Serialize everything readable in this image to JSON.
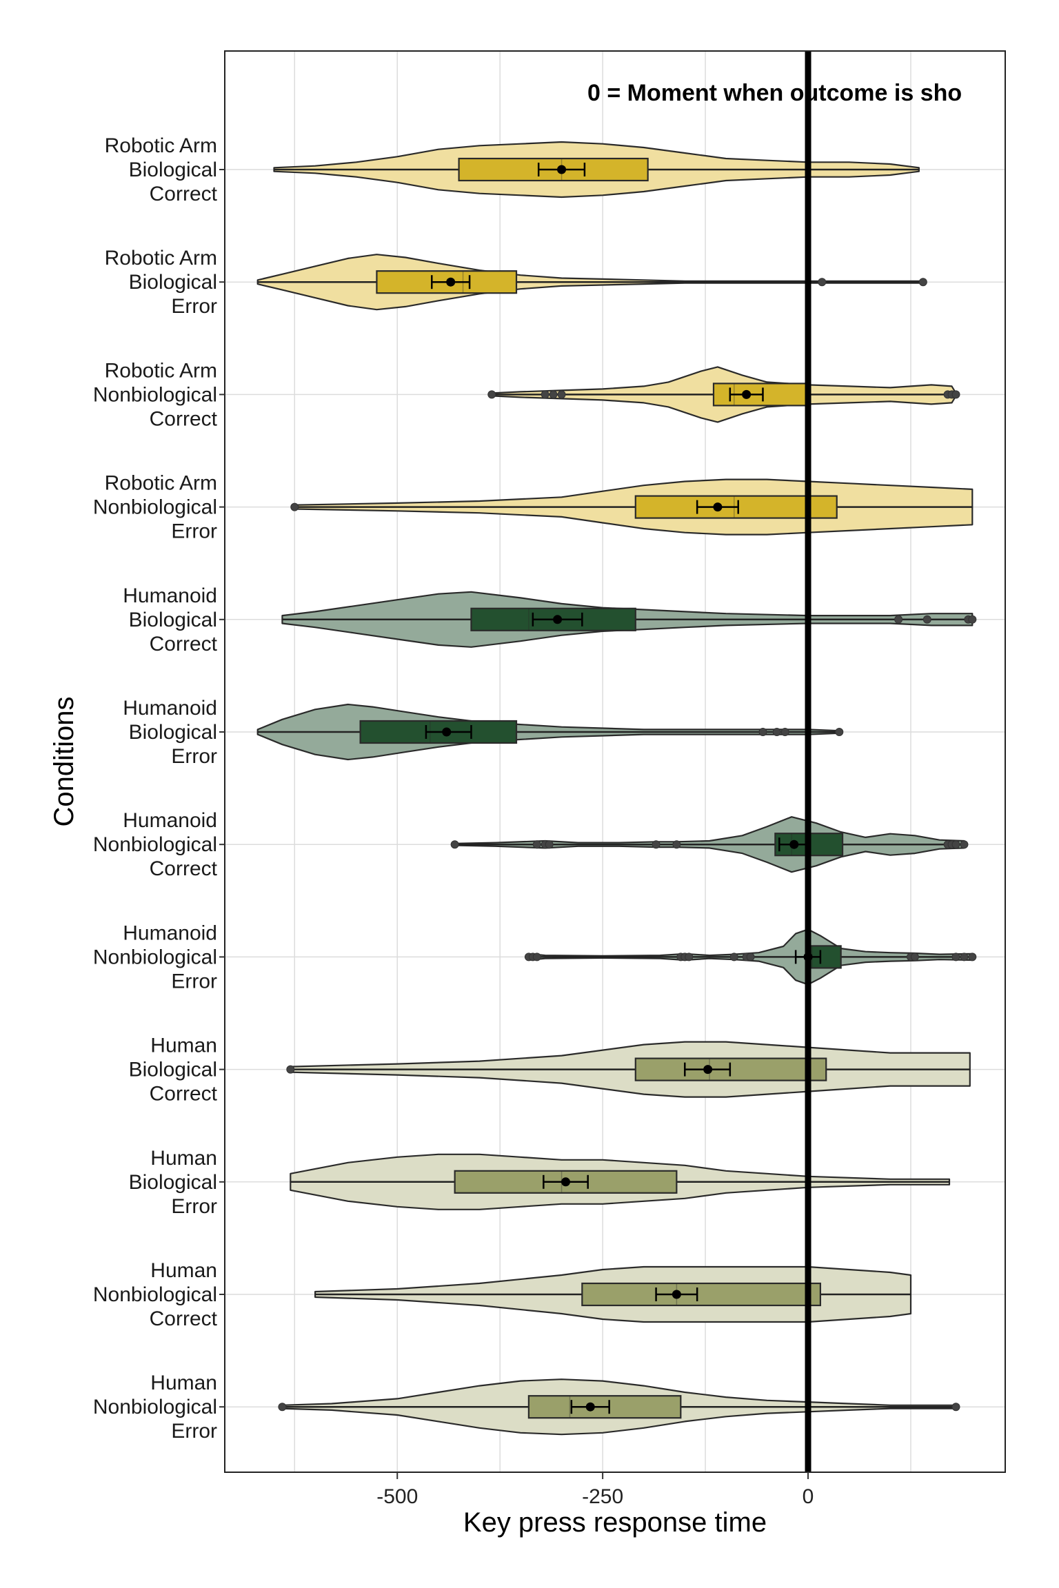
{
  "chart_data": {
    "type": "violin",
    "orientation": "horizontal",
    "xlabel": "Key press response time",
    "ylabel": "Conditions",
    "annotation": "0 = Moment when outcome is sho",
    "xlim": [
      -710,
      240
    ],
    "xticks": [
      -500,
      -250,
      0
    ],
    "xtick_labels": [
      "-500",
      "-250",
      "0"
    ],
    "grid": true,
    "reference_line": 0,
    "colors": {
      "Robotic Arm": {
        "box": "#D4B42A",
        "violin": "#F0DFA0"
      },
      "Humanoid": {
        "box": "#23502F",
        "violin": "#94AA9A"
      },
      "Human": {
        "box": "#9AA06A",
        "violin": "#DCDDC6"
      }
    },
    "conditions": [
      {
        "label": [
          "Robotic Arm",
          "Biological",
          "Correct"
        ],
        "agent": "Robotic Arm",
        "q1": -425,
        "median": -300,
        "q3": -195,
        "mean": -300,
        "ci": [
          -328,
          -272
        ],
        "min": -650,
        "max": 135,
        "outliers": [],
        "violin": [
          [
            -650,
            1
          ],
          [
            -600,
            2
          ],
          [
            -550,
            4
          ],
          [
            -500,
            7
          ],
          [
            -450,
            11
          ],
          [
            -400,
            13
          ],
          [
            -350,
            14
          ],
          [
            -300,
            15
          ],
          [
            -250,
            14
          ],
          [
            -200,
            12
          ],
          [
            -150,
            9
          ],
          [
            -100,
            6
          ],
          [
            -50,
            5
          ],
          [
            0,
            4
          ],
          [
            50,
            4
          ],
          [
            100,
            3
          ],
          [
            135,
            1
          ]
        ]
      },
      {
        "label": [
          "Robotic Arm",
          "Biological",
          "Error"
        ],
        "agent": "Robotic Arm",
        "q1": -525,
        "median": -420,
        "q3": -355,
        "mean": -435,
        "ci": [
          -458,
          -412
        ],
        "min": -670,
        "max": 140,
        "outliers": [
          17,
          140
        ],
        "violin": [
          [
            -670,
            2
          ],
          [
            -640,
            8
          ],
          [
            -600,
            16
          ],
          [
            -560,
            24
          ],
          [
            -525,
            28
          ],
          [
            -490,
            25
          ],
          [
            -450,
            19
          ],
          [
            -400,
            12
          ],
          [
            -350,
            7
          ],
          [
            -300,
            4
          ],
          [
            -250,
            3
          ],
          [
            -200,
            2
          ],
          [
            -150,
            1
          ],
          [
            -100,
            1
          ],
          [
            0,
            1
          ],
          [
            140,
            1
          ]
        ]
      },
      {
        "label": [
          "Robotic Arm",
          "Nonbiological",
          "Correct"
        ],
        "agent": "Robotic Arm",
        "q1": -115,
        "median": -90,
        "q3": 0,
        "mean": -75,
        "ci": [
          -95,
          -55
        ],
        "min": -385,
        "max": 180,
        "outliers": [
          -385,
          -320,
          -310,
          -300,
          170,
          175,
          180
        ],
        "violin": [
          [
            -385,
            1
          ],
          [
            -350,
            2
          ],
          [
            -300,
            3
          ],
          [
            -250,
            4
          ],
          [
            -200,
            6
          ],
          [
            -170,
            9
          ],
          [
            -130,
            17
          ],
          [
            -110,
            20
          ],
          [
            -80,
            14
          ],
          [
            -50,
            9
          ],
          [
            0,
            7
          ],
          [
            50,
            6
          ],
          [
            100,
            5
          ],
          [
            150,
            7
          ],
          [
            175,
            6
          ],
          [
            180,
            1
          ]
        ]
      },
      {
        "label": [
          "Robotic Arm",
          "Nonbiological",
          "Error"
        ],
        "agent": "Robotic Arm",
        "q1": -210,
        "median": -90,
        "q3": 35,
        "mean": -110,
        "ci": [
          -135,
          -85
        ],
        "min": -625,
        "max": 200,
        "outliers": [
          -625
        ],
        "violin": [
          [
            -625,
            1
          ],
          [
            -500,
            2
          ],
          [
            -400,
            3
          ],
          [
            -300,
            5
          ],
          [
            -250,
            8
          ],
          [
            -200,
            11
          ],
          [
            -150,
            13
          ],
          [
            -100,
            14
          ],
          [
            -50,
            14
          ],
          [
            0,
            13
          ],
          [
            50,
            12
          ],
          [
            100,
            11
          ],
          [
            150,
            10
          ],
          [
            200,
            9
          ]
        ]
      },
      {
        "label": [
          "Humanoid",
          "Biological",
          "Correct"
        ],
        "agent": "Humanoid",
        "q1": -410,
        "median": -340,
        "q3": -210,
        "mean": -305,
        "ci": [
          -335,
          -275
        ],
        "min": -640,
        "max": 200,
        "outliers": [
          110,
          145,
          195,
          200
        ],
        "violin": [
          [
            -640,
            2
          ],
          [
            -600,
            4
          ],
          [
            -550,
            7
          ],
          [
            -500,
            10
          ],
          [
            -450,
            13
          ],
          [
            -410,
            14
          ],
          [
            -350,
            11
          ],
          [
            -300,
            8
          ],
          [
            -250,
            6
          ],
          [
            -200,
            5
          ],
          [
            -150,
            4
          ],
          [
            -100,
            3
          ],
          [
            0,
            2
          ],
          [
            100,
            2
          ],
          [
            150,
            3
          ],
          [
            200,
            3
          ]
        ]
      },
      {
        "label": [
          "Humanoid",
          "Biological",
          "Error"
        ],
        "agent": "Humanoid",
        "q1": -545,
        "median": -460,
        "q3": -355,
        "mean": -440,
        "ci": [
          -465,
          -410
        ],
        "min": -670,
        "max": 38,
        "outliers": [
          -55,
          -38,
          -28,
          38
        ],
        "violin": [
          [
            -670,
            2
          ],
          [
            -640,
            10
          ],
          [
            -600,
            18
          ],
          [
            -560,
            22
          ],
          [
            -530,
            20
          ],
          [
            -490,
            16
          ],
          [
            -450,
            12
          ],
          [
            -400,
            8
          ],
          [
            -350,
            6
          ],
          [
            -300,
            4
          ],
          [
            -250,
            3
          ],
          [
            -200,
            2
          ],
          [
            -150,
            2
          ],
          [
            -100,
            2
          ],
          [
            -50,
            2
          ],
          [
            0,
            2
          ],
          [
            38,
            1
          ]
        ]
      },
      {
        "label": [
          "Humanoid",
          "Nonbiological",
          "Correct"
        ],
        "agent": "Humanoid",
        "q1": -40,
        "median": -20,
        "q3": 42,
        "mean": -17,
        "ci": [
          -35,
          0
        ],
        "min": -430,
        "max": 190,
        "outliers": [
          -430,
          -330,
          -320,
          -315,
          -185,
          -160,
          170,
          175,
          180,
          190
        ],
        "violin": [
          [
            -430,
            1
          ],
          [
            -380,
            2
          ],
          [
            -320,
            4
          ],
          [
            -280,
            2
          ],
          [
            -230,
            2
          ],
          [
            -185,
            3
          ],
          [
            -160,
            3
          ],
          [
            -120,
            4
          ],
          [
            -80,
            10
          ],
          [
            -50,
            20
          ],
          [
            -20,
            31
          ],
          [
            10,
            24
          ],
          [
            40,
            14
          ],
          [
            70,
            8
          ],
          [
            100,
            12
          ],
          [
            130,
            10
          ],
          [
            160,
            5
          ],
          [
            190,
            4
          ]
        ]
      },
      {
        "label": [
          "Humanoid",
          "Nonbiological",
          "Error"
        ],
        "agent": "Humanoid",
        "q1": 3,
        "median": 5,
        "q3": 40,
        "mean": 0,
        "ci": [
          -15,
          15
        ],
        "min": -340,
        "max": 200,
        "outliers": [
          -340,
          -335,
          -330,
          -155,
          -150,
          -145,
          -90,
          -75,
          -70,
          125,
          130,
          180,
          190,
          200
        ],
        "violin": [
          [
            -340,
            6
          ],
          [
            -320,
            3
          ],
          [
            -250,
            2
          ],
          [
            -180,
            3
          ],
          [
            -150,
            6
          ],
          [
            -120,
            3
          ],
          [
            -90,
            5
          ],
          [
            -60,
            8
          ],
          [
            -30,
            20
          ],
          [
            -15,
            44
          ],
          [
            0,
            52
          ],
          [
            15,
            40
          ],
          [
            40,
            16
          ],
          [
            70,
            10
          ],
          [
            100,
            8
          ],
          [
            130,
            7
          ],
          [
            160,
            5
          ],
          [
            200,
            6
          ]
        ]
      },
      {
        "label": [
          "Human",
          "Biological",
          "Correct"
        ],
        "agent": "Human",
        "q1": -210,
        "median": -120,
        "q3": 22,
        "mean": -122,
        "ci": [
          -150,
          -95
        ],
        "min": -630,
        "max": 197,
        "outliers": [
          -630
        ],
        "violin": [
          [
            -630,
            1
          ],
          [
            -500,
            2
          ],
          [
            -400,
            3
          ],
          [
            -300,
            5
          ],
          [
            -250,
            7
          ],
          [
            -200,
            9
          ],
          [
            -150,
            10
          ],
          [
            -100,
            10
          ],
          [
            -50,
            9
          ],
          [
            0,
            8
          ],
          [
            50,
            7
          ],
          [
            100,
            6
          ],
          [
            150,
            6
          ],
          [
            197,
            6
          ]
        ]
      },
      {
        "label": [
          "Human",
          "Biological",
          "Error"
        ],
        "agent": "Human",
        "q1": -430,
        "median": -300,
        "q3": -160,
        "mean": -295,
        "ci": [
          -322,
          -268
        ],
        "min": -630,
        "max": 172,
        "outliers": [],
        "violin": [
          [
            -630,
            3
          ],
          [
            -560,
            7
          ],
          [
            -500,
            9
          ],
          [
            -450,
            10
          ],
          [
            -400,
            10
          ],
          [
            -350,
            9
          ],
          [
            -300,
            8
          ],
          [
            -250,
            8
          ],
          [
            -200,
            7
          ],
          [
            -150,
            6
          ],
          [
            -100,
            4
          ],
          [
            -50,
            3
          ],
          [
            0,
            2
          ],
          [
            100,
            1
          ],
          [
            172,
            1
          ]
        ]
      },
      {
        "label": [
          "Human",
          "Nonbiological",
          "Correct"
        ],
        "agent": "Human",
        "q1": -275,
        "median": -160,
        "q3": 15,
        "mean": -160,
        "ci": [
          -185,
          -135
        ],
        "min": -600,
        "max": 125,
        "outliers": [],
        "violin": [
          [
            -600,
            1
          ],
          [
            -500,
            2
          ],
          [
            -400,
            4
          ],
          [
            -300,
            7
          ],
          [
            -250,
            9
          ],
          [
            -200,
            10
          ],
          [
            -150,
            10
          ],
          [
            -100,
            10
          ],
          [
            -50,
            10
          ],
          [
            0,
            10
          ],
          [
            50,
            9
          ],
          [
            100,
            8
          ],
          [
            125,
            7
          ]
        ]
      },
      {
        "label": [
          "Human",
          "Nonbiological",
          "Error"
        ],
        "agent": "Human",
        "q1": -340,
        "median": -290,
        "q3": -155,
        "mean": -265,
        "ci": [
          -288,
          -242
        ],
        "min": -640,
        "max": 180,
        "outliers": [
          -640,
          180
        ],
        "violin": [
          [
            -640,
            1
          ],
          [
            -580,
            2
          ],
          [
            -500,
            5
          ],
          [
            -450,
            9
          ],
          [
            -400,
            13
          ],
          [
            -350,
            16
          ],
          [
            -300,
            17
          ],
          [
            -250,
            16
          ],
          [
            -200,
            13
          ],
          [
            -150,
            9
          ],
          [
            -100,
            6
          ],
          [
            -50,
            4
          ],
          [
            0,
            3
          ],
          [
            50,
            2
          ],
          [
            100,
            1
          ],
          [
            180,
            1
          ]
        ]
      }
    ]
  }
}
